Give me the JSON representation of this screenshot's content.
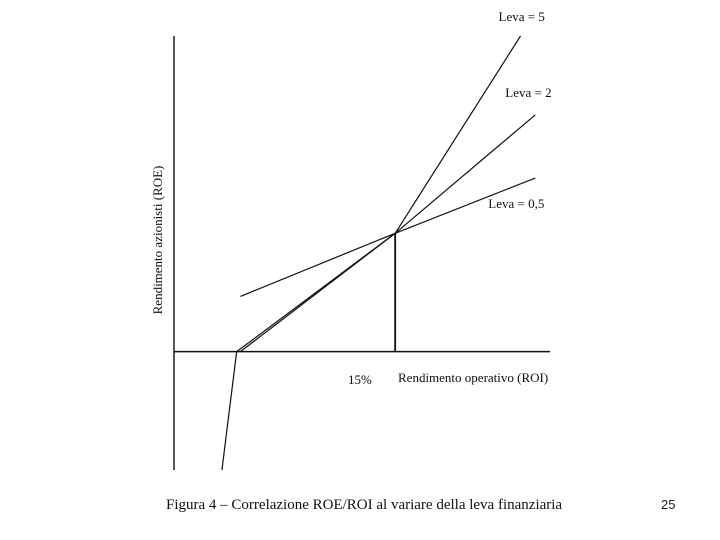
{
  "chart_data": {
    "type": "line",
    "ylabel": "Rendimento azionisti (ROE)",
    "xlabel": "Rendimento operativo (ROI)",
    "x_marker_label": "15%",
    "x_marker_value": 15,
    "xlim": [
      -15,
      36
    ],
    "ylim": [
      -15,
      40
    ],
    "grid": false,
    "legend": "inline labels at line ends",
    "series": [
      {
        "name": "Leva = 5",
        "x": [
          -6.5,
          15,
          32
        ],
        "y": [
          0,
          15,
          40
        ]
      },
      {
        "name": "Leva = 2",
        "x": [
          -6,
          15,
          34
        ],
        "y": [
          0,
          15,
          30
        ]
      },
      {
        "name": "Leva = 0,5",
        "x": [
          -6,
          15,
          34
        ],
        "y": [
          7,
          15,
          22
        ]
      }
    ],
    "kink_segment": {
      "x": [
        -8.5,
        -6.5
      ],
      "y": [
        -15,
        0
      ]
    }
  },
  "caption": "Figura 4 – Correlazione ROE/ROI al variare della leva finanziaria",
  "page_number": "25"
}
